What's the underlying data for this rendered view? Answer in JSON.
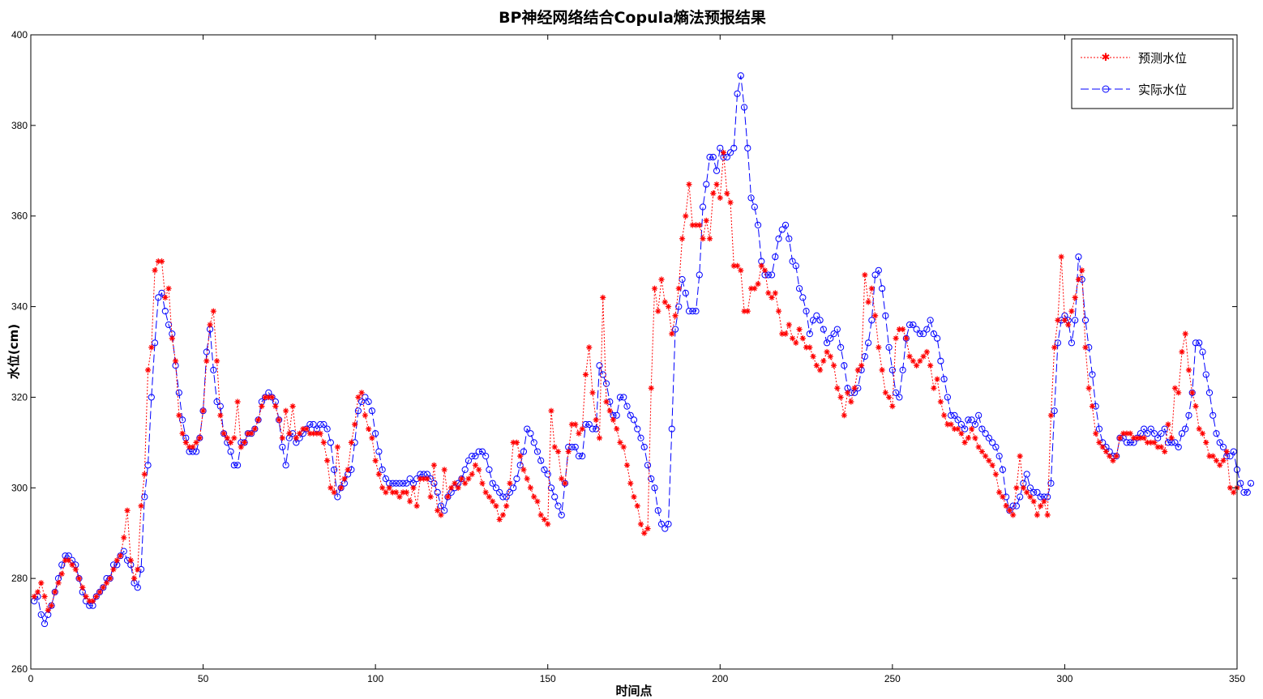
{
  "chart_data": {
    "type": "line",
    "title": "BP神经网络结合Copula熵法预报结果",
    "xlabel": "时间点",
    "ylabel": "水位(cm)",
    "xlim": [
      0,
      350
    ],
    "ylim": [
      260,
      400
    ],
    "xticks": [
      0,
      50,
      100,
      150,
      200,
      250,
      300,
      350
    ],
    "yticks": [
      260,
      280,
      300,
      320,
      340,
      360,
      380,
      400
    ],
    "grid": false,
    "legend_position": "top-right",
    "x_start": 1,
    "series": [
      {
        "name": "预测水位",
        "color": "#ff0000",
        "line_style": "dotted",
        "marker": "star",
        "values": [
          276,
          277,
          279,
          276,
          273,
          274,
          277,
          279,
          281,
          284,
          284,
          283,
          282,
          280,
          278,
          276,
          275,
          275,
          276,
          277,
          278,
          279,
          280,
          282,
          284,
          285,
          289,
          295,
          284,
          280,
          282,
          296,
          303,
          326,
          331,
          348,
          350,
          350,
          342,
          344,
          333,
          328,
          316,
          312,
          310,
          309,
          309,
          310,
          311,
          317,
          328,
          336,
          339,
          328,
          316,
          312,
          311,
          310,
          311,
          319,
          309,
          310,
          312,
          312,
          313,
          315,
          318,
          320,
          320,
          320,
          318,
          315,
          311,
          317,
          312,
          318,
          311,
          312,
          313,
          313,
          312,
          312,
          312,
          312,
          310,
          306,
          300,
          299,
          309,
          300,
          302,
          304,
          310,
          314,
          320,
          321,
          316,
          313,
          311,
          306,
          303,
          300,
          299,
          300,
          299,
          299,
          298,
          299,
          299,
          297,
          300,
          296,
          302,
          302,
          302,
          298,
          305,
          295,
          294,
          304,
          298,
          300,
          301,
          300,
          302,
          301,
          302,
          303,
          305,
          304,
          301,
          299,
          298,
          297,
          296,
          293,
          294,
          296,
          301,
          310,
          310,
          307,
          304,
          302,
          300,
          298,
          297,
          294,
          293,
          292,
          317,
          309,
          308,
          302,
          301,
          308,
          314,
          314,
          312,
          313,
          325,
          331,
          321,
          315,
          311,
          342,
          319,
          317,
          315,
          313,
          310,
          309,
          305,
          301,
          298,
          296,
          292,
          290,
          291,
          322,
          344,
          339,
          346,
          341,
          340,
          334,
          338,
          344,
          355,
          360,
          367,
          358,
          358,
          358,
          355,
          359,
          355,
          365,
          367,
          364,
          374,
          365,
          363,
          349,
          349,
          348,
          339,
          339,
          344,
          344,
          345,
          349,
          348,
          343,
          342,
          343,
          339,
          334,
          334,
          336,
          333,
          332,
          335,
          333,
          331,
          331,
          329,
          327,
          326,
          328,
          330,
          329,
          327,
          322,
          320,
          316,
          321,
          319,
          322,
          326,
          327,
          347,
          341,
          344,
          338,
          331,
          326,
          321,
          320,
          318,
          333,
          335,
          335,
          333,
          329,
          328,
          327,
          328,
          329,
          330,
          327,
          322,
          324,
          319,
          316,
          314,
          314,
          313,
          313,
          312,
          310,
          311,
          313,
          311,
          309,
          308,
          307,
          306,
          305,
          303,
          299,
          298,
          296,
          295,
          294,
          300,
          307,
          300,
          299,
          298,
          297,
          294,
          296,
          297,
          294,
          316,
          331,
          337,
          351,
          337,
          336,
          339,
          342,
          346,
          348,
          331,
          322,
          318,
          312,
          310,
          309,
          308,
          307,
          306,
          307,
          311,
          312,
          312,
          312,
          311,
          311,
          311,
          311,
          310,
          310,
          310,
          309,
          309,
          308,
          314,
          311,
          322,
          321,
          330,
          334,
          326,
          321,
          318,
          313,
          312,
          310,
          307,
          307,
          306,
          305,
          306,
          308,
          300,
          299,
          300
        ]
      },
      {
        "name": "实际水位",
        "color": "#0000ff",
        "line_style": "dashed",
        "marker": "circle",
        "values": [
          275,
          276,
          272,
          270,
          272,
          274,
          277,
          280,
          283,
          285,
          285,
          284,
          283,
          280,
          277,
          275,
          274,
          274,
          276,
          277,
          278,
          280,
          280,
          283,
          283,
          285,
          286,
          284,
          283,
          279,
          278,
          282,
          298,
          305,
          320,
          332,
          342,
          343,
          339,
          336,
          334,
          327,
          321,
          315,
          311,
          308,
          308,
          308,
          311,
          317,
          330,
          335,
          326,
          319,
          318,
          312,
          310,
          308,
          305,
          305,
          310,
          310,
          312,
          312,
          313,
          315,
          319,
          320,
          321,
          320,
          319,
          315,
          309,
          305,
          311,
          312,
          310,
          311,
          312,
          313,
          314,
          314,
          313,
          314,
          314,
          313,
          310,
          304,
          298,
          300,
          301,
          303,
          304,
          310,
          317,
          319,
          320,
          319,
          317,
          312,
          308,
          304,
          302,
          301,
          301,
          301,
          301,
          301,
          301,
          302,
          301,
          302,
          303,
          303,
          303,
          302,
          301,
          299,
          296,
          295,
          298,
          299,
          300,
          301,
          302,
          304,
          306,
          307,
          307,
          308,
          308,
          307,
          304,
          301,
          300,
          299,
          298,
          298,
          299,
          300,
          302,
          305,
          308,
          313,
          312,
          310,
          308,
          306,
          304,
          303,
          300,
          298,
          296,
          294,
          301,
          309,
          309,
          309,
          307,
          307,
          314,
          314,
          313,
          313,
          327,
          325,
          323,
          319,
          316,
          316,
          320,
          320,
          318,
          316,
          315,
          313,
          311,
          309,
          305,
          302,
          300,
          295,
          292,
          291,
          292,
          313,
          335,
          340,
          346,
          343,
          339,
          339,
          339,
          347,
          362,
          367,
          373,
          373,
          370,
          375,
          373,
          373,
          374,
          375,
          387,
          391,
          384,
          375,
          364,
          362,
          358,
          350,
          347,
          347,
          347,
          351,
          355,
          357,
          358,
          355,
          350,
          349,
          344,
          342,
          339,
          334,
          337,
          338,
          337,
          335,
          332,
          333,
          334,
          335,
          331,
          327,
          322,
          321,
          321,
          322,
          326,
          329,
          332,
          337,
          347,
          348,
          344,
          338,
          331,
          326,
          321,
          320,
          326,
          333,
          336,
          336,
          335,
          334,
          334,
          335,
          337,
          334,
          333,
          328,
          324,
          320,
          316,
          316,
          315,
          314,
          313,
          315,
          315,
          314,
          316,
          313,
          312,
          311,
          310,
          309,
          307,
          304,
          298,
          295,
          296,
          296,
          298,
          301,
          303,
          300,
          299,
          299,
          298,
          298,
          298,
          301,
          317,
          332,
          337,
          338,
          337,
          332,
          337,
          351,
          346,
          337,
          331,
          325,
          318,
          313,
          310,
          309,
          308,
          307,
          307,
          311,
          311,
          310,
          310,
          310,
          311,
          312,
          313,
          312,
          313,
          312,
          311,
          312,
          313,
          310,
          310,
          310,
          309,
          312,
          313,
          316,
          321,
          332,
          332,
          330,
          325,
          321,
          316,
          312,
          310,
          309,
          307,
          307,
          308,
          304,
          301,
          299,
          299,
          301
        ]
      }
    ]
  }
}
